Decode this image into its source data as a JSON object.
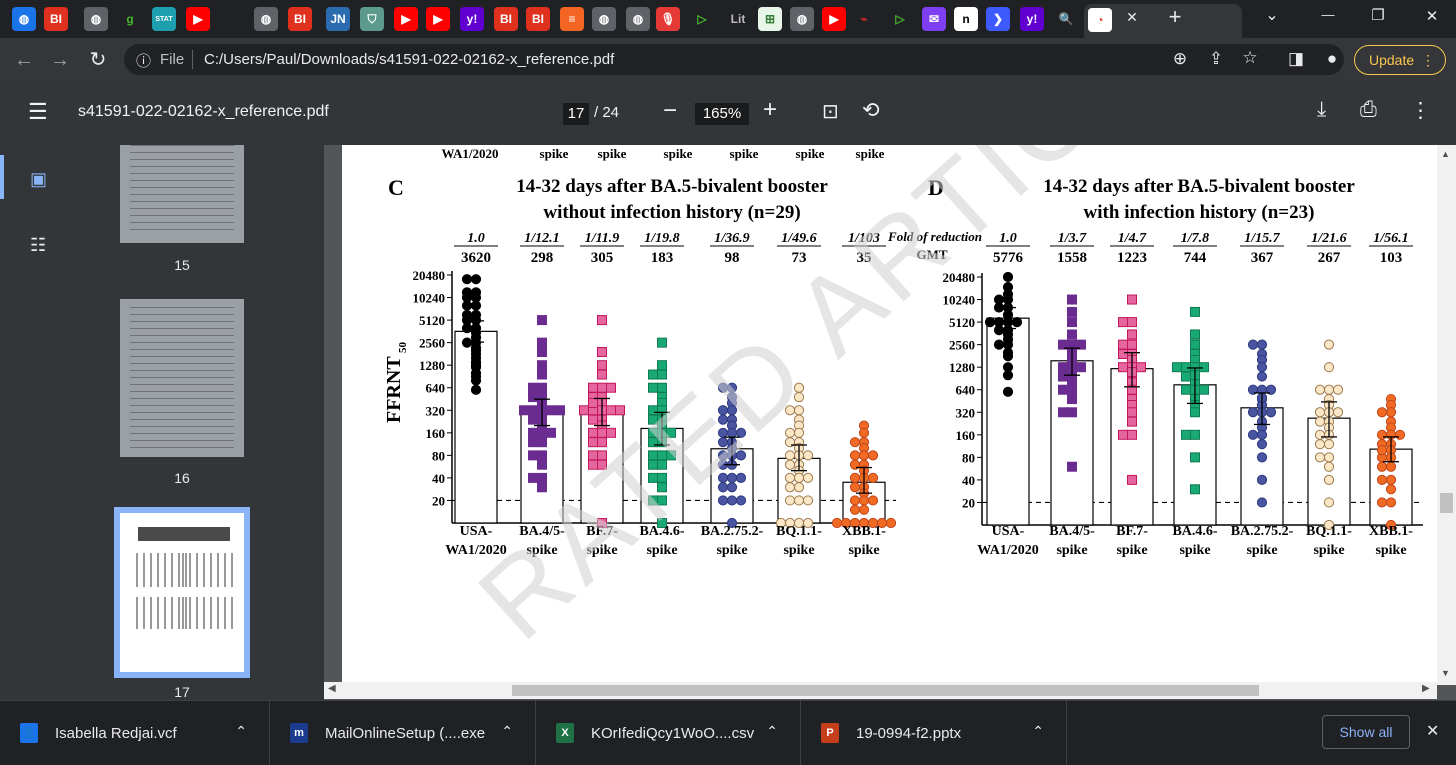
{
  "browser": {
    "tab_favicons": [
      {
        "icon": "globe-icon",
        "glyph": "◍",
        "bg": "#1a73e8"
      },
      {
        "icon": "business-insider-icon",
        "glyph": "BI",
        "bg": "#e0301e"
      },
      {
        "icon": "globe-icon",
        "glyph": "◍",
        "bg": "#5f6368"
      },
      {
        "icon": "g-icon",
        "glyph": "g",
        "bg": "#202124",
        "fg": "#42b72a"
      },
      {
        "icon": "stat-icon",
        "glyph": "STAT",
        "bg": "#1e9fb0"
      },
      {
        "icon": "youtube-icon",
        "glyph": "▶",
        "bg": "#ff0000"
      },
      {
        "icon": "globe-icon",
        "glyph": "◍",
        "bg": "#5f6368"
      },
      {
        "icon": "business-insider-icon",
        "glyph": "BI",
        "bg": "#e0301e"
      },
      {
        "icon": "jn-icon",
        "glyph": "JN",
        "bg": "#2b6cb0"
      },
      {
        "icon": "shield-icon",
        "glyph": "⛉",
        "bg": "#5c9a8b"
      },
      {
        "icon": "youtube-icon",
        "glyph": "▶",
        "bg": "#ff0000"
      },
      {
        "icon": "youtube-icon",
        "glyph": "▶",
        "bg": "#ff0000"
      },
      {
        "icon": "yahoo-icon",
        "glyph": "y!",
        "bg": "#6001d2"
      },
      {
        "icon": "business-insider-icon",
        "glyph": "BI",
        "bg": "#e0301e"
      },
      {
        "icon": "business-insider-icon",
        "glyph": "BI",
        "bg": "#e0301e"
      },
      {
        "icon": "bars-icon",
        "glyph": "≡",
        "bg": "#f26522"
      },
      {
        "icon": "globe-icon",
        "glyph": "◍",
        "bg": "#5f6368"
      },
      {
        "icon": "globe-icon",
        "glyph": "◍",
        "bg": "#5f6368"
      },
      {
        "icon": "mic-icon",
        "glyph": "🎙",
        "bg": "#e53935"
      },
      {
        "icon": "play-icon",
        "glyph": "▷",
        "bg": "#202124",
        "fg": "#42b72a"
      },
      {
        "icon": "lit-icon",
        "glyph": "Lit",
        "bg": "#202124",
        "fg": "#bbbbbb"
      },
      {
        "icon": "grid-icon",
        "glyph": "⊞",
        "bg": "#e8f5e9",
        "fg": "#2e7d32"
      },
      {
        "icon": "globe-icon",
        "glyph": "◍",
        "bg": "#5f6368"
      },
      {
        "icon": "youtube-icon",
        "glyph": "▶",
        "bg": "#ff0000"
      },
      {
        "icon": "car-icon",
        "glyph": "⌁",
        "bg": "#202124",
        "fg": "#c62828"
      },
      {
        "icon": "play-icon",
        "glyph": "▷",
        "bg": "#202124",
        "fg": "#42b72a"
      },
      {
        "icon": "mail-icon",
        "glyph": "✉",
        "bg": "#7e3ff2"
      },
      {
        "icon": "n-icon",
        "glyph": "n",
        "bg": "#ffffff",
        "fg": "#000000"
      },
      {
        "icon": "arrow-icon",
        "glyph": "❯",
        "bg": "#3d5afe"
      },
      {
        "icon": "yahoo-icon",
        "glyph": "y!",
        "bg": "#6001d2"
      },
      {
        "icon": "search-icon",
        "glyph": "🔍",
        "bg": "#202124",
        "fg": "#4285f4"
      },
      {
        "icon": "clock-icon",
        "glyph": "◔",
        "bg": "#ffffff",
        "fg": "#d93025"
      }
    ],
    "close_tab": "✕",
    "new_tab": "+",
    "window_controls": {
      "menu": "⌄",
      "minimize": "—",
      "restore": "❐",
      "close": "✕"
    },
    "file_label": "File",
    "url": "C:/Users/Paul/Downloads/s41591-022-02162-x_reference.pdf",
    "update_label": "Update"
  },
  "pdf": {
    "title": "s41591-022-02162-x_reference.pdf",
    "current_page": "17",
    "total_pages": "/ 24",
    "zoom": "165%",
    "thumbnails": [
      {
        "label": "15"
      },
      {
        "label": "16"
      },
      {
        "label": "17"
      }
    ]
  },
  "figure": {
    "watermark": "RATED ARTICL",
    "top_row_labels": [
      "WA1/2020",
      "spike",
      "spike",
      "spike",
      "spike",
      "spike",
      "spike"
    ],
    "fold_row_label": "Fold of reduction",
    "gmt_row_label": "GMT",
    "y_axis_label": "FFRNT",
    "y_axis_subscript": "50"
  },
  "chart_data": [
    {
      "type": "scatter",
      "panel": "C",
      "title": "14-32 days after BA.5-bivalent booster",
      "subtitle": "without infection history (n=29)",
      "ylabel": "FFRNT50",
      "yscale": "log2",
      "yticks": [
        20,
        40,
        80,
        160,
        320,
        640,
        1280,
        2560,
        5120,
        10240,
        20480
      ],
      "limit_of_detection": 20,
      "categories": [
        "USA-WA1/2020",
        "BA.4/5-spike",
        "BF.7-spike",
        "BA.4.6-spike",
        "BA.2.75.2-spike",
        "BQ.1.1-spike",
        "XBB.1-spike"
      ],
      "category_lines": [
        [
          "USA-",
          "WA1/2020"
        ],
        [
          "BA.4/5-",
          "spike"
        ],
        [
          "BF.7-",
          "spike"
        ],
        [
          "BA.4.6-",
          "spike"
        ],
        [
          "BA.2.75.2-",
          "spike"
        ],
        [
          "BQ.1.1-",
          "spike"
        ],
        [
          "XBB.1-",
          "spike"
        ]
      ],
      "fold_reduction": [
        "1.0",
        "1/12.1",
        "1/11.9",
        "1/19.8",
        "1/36.9",
        "1/49.6",
        "1/103"
      ],
      "gmt": [
        3620,
        298,
        305,
        183,
        98,
        73,
        35
      ],
      "gmt_labels": [
        "3620",
        "298",
        "305",
        "183",
        "98",
        "73",
        "35"
      ],
      "series": [
        {
          "marker": "circle",
          "fill": "#000000",
          "stroke": "#000000",
          "ci": [
            2600,
            5000
          ],
          "values": [
            18000,
            18000,
            12000,
            12000,
            10240,
            10240,
            8000,
            8000,
            6000,
            6000,
            5120,
            5120,
            4000,
            4000,
            3500,
            3000,
            2560,
            2560,
            2200,
            2000,
            1800,
            1600,
            1400,
            1280,
            1200,
            1000,
            900,
            800,
            600
          ]
        },
        {
          "marker": "square",
          "fill": "#6b2c91",
          "stroke": "#6b2c91",
          "ci": [
            200,
            450
          ],
          "values": [
            5120,
            2560,
            1920,
            1280,
            960,
            640,
            640,
            480,
            480,
            400,
            320,
            320,
            320,
            320,
            320,
            240,
            240,
            200,
            160,
            160,
            160,
            120,
            120,
            80,
            80,
            60,
            40,
            40,
            30
          ]
        },
        {
          "marker": "square",
          "fill": "#e5669e",
          "stroke": "#c2185b",
          "ci": [
            200,
            460
          ],
          "values": [
            5120,
            1920,
            1280,
            960,
            640,
            640,
            640,
            480,
            480,
            400,
            320,
            320,
            320,
            320,
            320,
            240,
            240,
            200,
            160,
            160,
            160,
            120,
            120,
            80,
            80,
            60,
            60,
            10,
            400
          ]
        },
        {
          "marker": "square",
          "fill": "#19a974",
          "stroke": "#0f7b52",
          "ci": [
            110,
            300
          ],
          "values": [
            2560,
            1280,
            960,
            960,
            640,
            640,
            480,
            400,
            320,
            320,
            240,
            240,
            200,
            160,
            160,
            160,
            120,
            120,
            80,
            80,
            80,
            60,
            60,
            40,
            40,
            30,
            20,
            20,
            10
          ]
        },
        {
          "marker": "circle",
          "fill": "#4a55a2",
          "stroke": "#2e3a7d",
          "ci": [
            60,
            140
          ],
          "values": [
            640,
            640,
            480,
            400,
            320,
            320,
            240,
            240,
            200,
            160,
            160,
            160,
            120,
            120,
            100,
            80,
            80,
            80,
            60,
            60,
            40,
            40,
            40,
            30,
            30,
            20,
            20,
            20,
            10
          ]
        },
        {
          "marker": "circle",
          "fill": "#fbe6c6",
          "stroke": "#9c7a4f",
          "ci": [
            50,
            110
          ],
          "values": [
            640,
            480,
            320,
            320,
            240,
            200,
            160,
            160,
            120,
            120,
            100,
            80,
            80,
            80,
            60,
            60,
            50,
            40,
            40,
            40,
            30,
            30,
            20,
            20,
            20,
            10,
            10,
            10,
            10
          ]
        },
        {
          "marker": "circle",
          "fill": "#f06a24",
          "stroke": "#c0461a",
          "ci": [
            25,
            55
          ],
          "values": [
            200,
            160,
            120,
            120,
            100,
            80,
            80,
            80,
            60,
            60,
            50,
            40,
            40,
            40,
            30,
            30,
            25,
            20,
            20,
            20,
            15,
            15,
            10,
            10,
            10,
            10,
            10,
            10,
            10
          ]
        }
      ]
    },
    {
      "type": "scatter",
      "panel": "D",
      "title": "14-32 days after BA.5-bivalent booster",
      "subtitle": "with infection history (n=23)",
      "ylabel": "FFRNT50",
      "yscale": "log2",
      "yticks": [
        20,
        40,
        80,
        160,
        320,
        640,
        1280,
        2560,
        5120,
        10240,
        20480
      ],
      "limit_of_detection": 20,
      "categories": [
        "USA-WA1/2020",
        "BA.4/5-spike",
        "BF.7-spike",
        "BA.4.6-spike",
        "BA.2.75.2-spike",
        "BQ.1.1-spike",
        "XBB.1-spike"
      ],
      "category_lines": [
        [
          "USA-",
          "WA1/2020"
        ],
        [
          "BA.4/5-",
          "spike"
        ],
        [
          "BF.7-",
          "spike"
        ],
        [
          "BA.4.6-",
          "spike"
        ],
        [
          "BA.2.75.2-",
          "spike"
        ],
        [
          "BQ.1.1-",
          "spike"
        ],
        [
          "XBB.1-",
          "spike"
        ]
      ],
      "fold_reduction": [
        "1.0",
        "1/3.7",
        "1/4.7",
        "1/7.8",
        "1/15.7",
        "1/21.6",
        "1/56.1"
      ],
      "gmt": [
        5776,
        1558,
        1223,
        744,
        367,
        267,
        103
      ],
      "gmt_labels": [
        "5776",
        "1558",
        "1223",
        "744",
        "367",
        "267",
        "103"
      ],
      "series": [
        {
          "marker": "circle",
          "fill": "#000000",
          "stroke": "#000000",
          "ci": [
            4200,
            8000
          ],
          "values": [
            20480,
            15000,
            12000,
            10240,
            10240,
            8000,
            8000,
            6400,
            5120,
            5120,
            5120,
            5120,
            4000,
            4000,
            3500,
            3000,
            2560,
            2560,
            2000,
            1800,
            1280,
            1000,
            600
          ]
        },
        {
          "marker": "square",
          "fill": "#6b2c91",
          "stroke": "#6b2c91",
          "ci": [
            1000,
            2300
          ],
          "values": [
            10240,
            7000,
            5120,
            3500,
            2560,
            2560,
            2560,
            2000,
            1920,
            1600,
            1280,
            1280,
            1280,
            960,
            960,
            800,
            640,
            640,
            480,
            320,
            320,
            60,
            1800
          ]
        },
        {
          "marker": "square",
          "fill": "#e5669e",
          "stroke": "#c2185b",
          "ci": [
            700,
            2000
          ],
          "values": [
            10240,
            5120,
            5120,
            3500,
            2560,
            2560,
            1920,
            1920,
            1600,
            1280,
            1280,
            1280,
            960,
            800,
            640,
            480,
            400,
            320,
            240,
            160,
            160,
            40,
            1100
          ]
        },
        {
          "marker": "square",
          "fill": "#19a974",
          "stroke": "#0f7b52",
          "ci": [
            420,
            1250
          ],
          "values": [
            7000,
            3500,
            2560,
            1920,
            1600,
            1280,
            1280,
            1280,
            1280,
            960,
            960,
            800,
            640,
            640,
            480,
            400,
            320,
            160,
            160,
            80,
            30,
            640,
            1000
          ]
        },
        {
          "marker": "circle",
          "fill": "#4a55a2",
          "stroke": "#2e3a7d",
          "ci": [
            220,
            580
          ],
          "values": [
            2560,
            2560,
            1920,
            1600,
            1280,
            960,
            640,
            640,
            640,
            480,
            400,
            320,
            320,
            320,
            240,
            200,
            160,
            160,
            120,
            80,
            40,
            20,
            500
          ]
        },
        {
          "marker": "circle",
          "fill": "#fbe6c6",
          "stroke": "#9c7a4f",
          "ci": [
            150,
            440
          ],
          "values": [
            2560,
            1280,
            640,
            640,
            640,
            480,
            400,
            320,
            320,
            320,
            240,
            240,
            200,
            160,
            160,
            120,
            120,
            80,
            80,
            60,
            40,
            20,
            10
          ]
        },
        {
          "marker": "circle",
          "fill": "#f06a24",
          "stroke": "#c0461a",
          "ci": [
            70,
            150
          ],
          "values": [
            480,
            400,
            320,
            320,
            240,
            200,
            160,
            160,
            160,
            120,
            120,
            100,
            80,
            80,
            60,
            60,
            40,
            40,
            30,
            20,
            20,
            10,
            100
          ]
        }
      ]
    }
  ],
  "downloads": [
    {
      "icon": "contact-card-icon",
      "glyph": "👤",
      "color": "#1a73e8",
      "name": "Isabella Redjai.vcf"
    },
    {
      "icon": "mailonline-icon",
      "glyph": "m",
      "color": "#1b3b8f",
      "name": "MailOnlineSetup (....exe"
    },
    {
      "icon": "excel-icon",
      "glyph": "X",
      "color": "#1e7145",
      "name": "KOrIfediQcy1WoO....csv"
    },
    {
      "icon": "powerpoint-icon",
      "glyph": "P",
      "color": "#c43e1c",
      "name": "19-0994-f2.pptx"
    }
  ],
  "show_all_label": "Show all",
  "close_downloads": "✕"
}
